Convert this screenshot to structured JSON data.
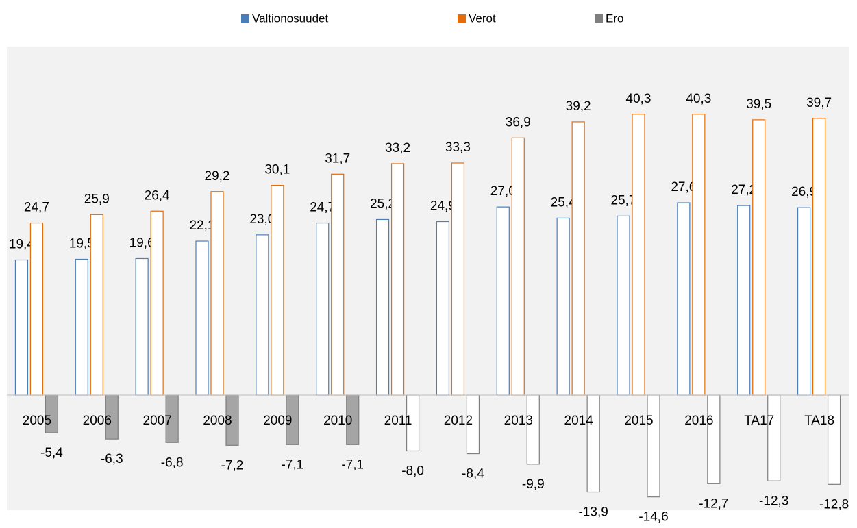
{
  "chart_data": {
    "type": "bar",
    "categories": [
      "2005",
      "2006",
      "2007",
      "2008",
      "2009",
      "2010",
      "2011",
      "2012",
      "2013",
      "2014",
      "2015",
      "2016",
      "TA17",
      "TA18"
    ],
    "ylim": [
      -16.5,
      50
    ],
    "series": [
      {
        "name": "Valtionosuudet",
        "color": "#4a7ebb",
        "fill": "#ffffff",
        "values": [
          19.4,
          19.5,
          19.6,
          22.1,
          23.0,
          24.7,
          25.2,
          24.9,
          27.0,
          25.4,
          25.7,
          27.6,
          27.2,
          26.9
        ],
        "value_labels": [
          "19,4",
          "19,5",
          "19,6",
          "22,1",
          "23,0",
          "24,7",
          "25,2",
          "24,9",
          "27,0",
          "25,4",
          "25,7",
          "27,6",
          "27,2",
          "26,9"
        ]
      },
      {
        "name": "Verot",
        "color": "#e46c0a",
        "fill": "#ffffff",
        "values": [
          24.7,
          25.9,
          26.4,
          29.2,
          30.1,
          31.7,
          33.2,
          33.3,
          36.9,
          39.2,
          40.3,
          40.3,
          39.5,
          39.7
        ],
        "value_labels": [
          "24,7",
          "25,9",
          "26,4",
          "29,2",
          "30,1",
          "31,7",
          "33,2",
          "33,3",
          "36,9",
          "39,2",
          "40,3",
          "40,3",
          "39,5",
          "39,7"
        ]
      },
      {
        "name": "Ero",
        "color": "#7f7f7f",
        "fill": [
          "#a5a5a5",
          "#a5a5a5",
          "#a5a5a5",
          "#a5a5a5",
          "#a5a5a5",
          "#a5a5a5",
          "#ffffff",
          "#ffffff",
          "#ffffff",
          "#ffffff",
          "#ffffff",
          "#ffffff",
          "#ffffff",
          "#ffffff"
        ],
        "values": [
          -5.4,
          -6.3,
          -6.8,
          -7.2,
          -7.1,
          -7.1,
          -8.0,
          -8.4,
          -9.9,
          -13.9,
          -14.6,
          -12.7,
          -12.3,
          -12.8
        ],
        "value_labels": [
          "-5,4",
          "-6,3",
          "-6,8",
          "-7,2",
          "-7,1",
          "-7,1",
          "-8,0",
          "-8,4",
          "-9,9",
          "-13,9",
          "-14,6",
          "-12,7",
          "-12,3",
          "-12,8"
        ]
      }
    ]
  }
}
